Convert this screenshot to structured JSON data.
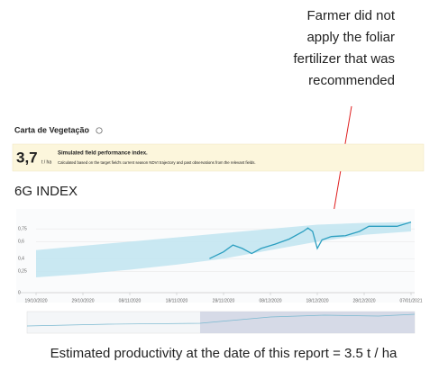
{
  "annotation": [
    "Farmer did not",
    "apply the foliar",
    "fertilizer that was",
    "recommended"
  ],
  "card_title": "Carta de Vegetação",
  "index_value": "3,7",
  "index_unit": "t / ha",
  "index_title": "Simulated field performance index.",
  "index_desc": "Calculated based on the target field's current season NDVI trajectory and past observations from the relevant fields.",
  "footer": "Estimated productivity at the date of this report = 3.5 t / ha",
  "chart_data": {
    "type": "line",
    "title": "6G INDEX",
    "x": [
      "25/11/2020",
      "28/11/2020",
      "30/11/2020",
      "02/12/2020",
      "04/12/2020",
      "06/12/2020",
      "09/12/2020",
      "12/12/2020",
      "15/12/2020",
      "16/12/2020",
      "17/12/2020",
      "18/12/2020",
      "19/12/2020",
      "21/12/2020",
      "24/12/2020",
      "27/12/2020",
      "29/12/2020",
      "01/01/2021",
      "04/01/2021",
      "07/01/2021"
    ],
    "series": [
      {
        "color": "#2c9fc0",
        "values": [
          0.4,
          0.48,
          0.56,
          0.52,
          0.46,
          0.52,
          0.57,
          0.63,
          0.72,
          0.76,
          0.72,
          0.52,
          0.62,
          0.66,
          0.67,
          0.72,
          0.78,
          0.78,
          0.78,
          0.83
        ]
      }
    ],
    "band": {
      "color": "#c3e6f1",
      "x": [
        "19/10/2020",
        "29/10/2020",
        "08/11/2020",
        "18/11/2020",
        "28/11/2020",
        "08/12/2020",
        "18/12/2020",
        "28/12/2020",
        "07/01/2021"
      ],
      "lower": [
        0.18,
        0.22,
        0.27,
        0.33,
        0.4,
        0.5,
        0.6,
        0.68,
        0.72
      ],
      "upper": [
        0.5,
        0.55,
        0.6,
        0.65,
        0.7,
        0.75,
        0.8,
        0.82,
        0.83
      ]
    },
    "xlim": [
      "19/10/2020",
      "07/01/2021"
    ],
    "xticks": [
      "19/10/2020",
      "29/10/2020",
      "08/11/2020",
      "18/11/2020",
      "28/11/2020",
      "08/12/2020",
      "18/12/2020",
      "28/12/2020",
      "07/01/2021"
    ],
    "ylim": [
      0,
      0.9
    ],
    "yticks": [
      0,
      {
        "value": 0.25,
        "label": "0,25"
      },
      {
        "value": 0.4,
        "label": "0,4"
      },
      {
        "value": 0.6,
        "label": "0,6"
      },
      {
        "value": 0.75,
        "label": "0,75"
      }
    ],
    "grid": true
  }
}
